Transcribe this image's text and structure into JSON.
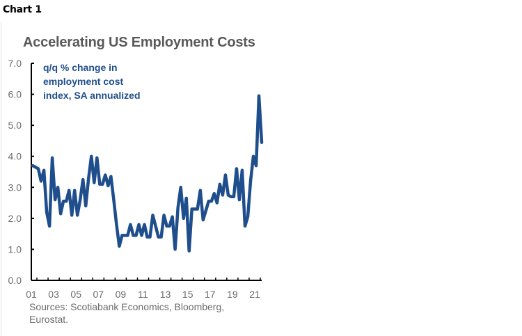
{
  "header": {
    "chart_label": "Chart 1"
  },
  "chart_data": {
    "type": "line",
    "title": "Accelerating US Employment Costs",
    "series_label_lines": [
      "q/q % change in",
      "employment cost",
      "index, SA annualized"
    ],
    "xlabel": "",
    "ylabel": "",
    "ylim": [
      0,
      7
    ],
    "yticks": [
      "0.0",
      "1.0",
      "2.0",
      "3.0",
      "4.0",
      "5.0",
      "6.0",
      "7.0"
    ],
    "ytick_values": [
      0,
      1,
      2,
      3,
      4,
      5,
      6,
      7
    ],
    "xticks": [
      "01",
      "03",
      "05",
      "07",
      "09",
      "11",
      "13",
      "15",
      "17",
      "19",
      "21"
    ],
    "xtick_years": [
      2001,
      2003,
      2005,
      2007,
      2009,
      2011,
      2013,
      2015,
      2017,
      2019,
      2021
    ],
    "xlim": [
      2001,
      2021.75
    ],
    "grid": false,
    "line_color": "#1f4e8c",
    "series": [
      {
        "name": "q/q % change in employment cost index, SA annualized",
        "start": "2001Q1",
        "frequency": "quarterly",
        "values": [
          3.7,
          3.65,
          3.6,
          3.2,
          3.55,
          2.2,
          1.75,
          3.95,
          2.6,
          3.0,
          2.15,
          2.55,
          2.55,
          2.9,
          2.1,
          2.9,
          2.1,
          2.6,
          3.25,
          2.4,
          3.3,
          4.0,
          3.15,
          3.95,
          3.1,
          3.1,
          3.4,
          3.05,
          3.35,
          2.6,
          1.8,
          1.1,
          1.45,
          1.45,
          1.45,
          1.8,
          1.45,
          1.45,
          1.8,
          1.45,
          1.8,
          1.4,
          1.4,
          2.1,
          1.75,
          1.4,
          1.4,
          2.1,
          1.75,
          1.75,
          2.05,
          1.0,
          2.35,
          3.0,
          2.0,
          2.65,
          0.95,
          2.3,
          2.3,
          2.3,
          2.9,
          1.95,
          2.25,
          2.55,
          2.55,
          2.8,
          2.5,
          3.1,
          2.75,
          3.4,
          2.75,
          2.7,
          2.7,
          3.6,
          2.6,
          3.55,
          1.75,
          2.05,
          3.2,
          4.0,
          3.7,
          5.95,
          4.45
        ]
      }
    ]
  },
  "footer": {
    "sources": "Sources: Scotiabank Economics, Bloomberg, Eurostat."
  }
}
